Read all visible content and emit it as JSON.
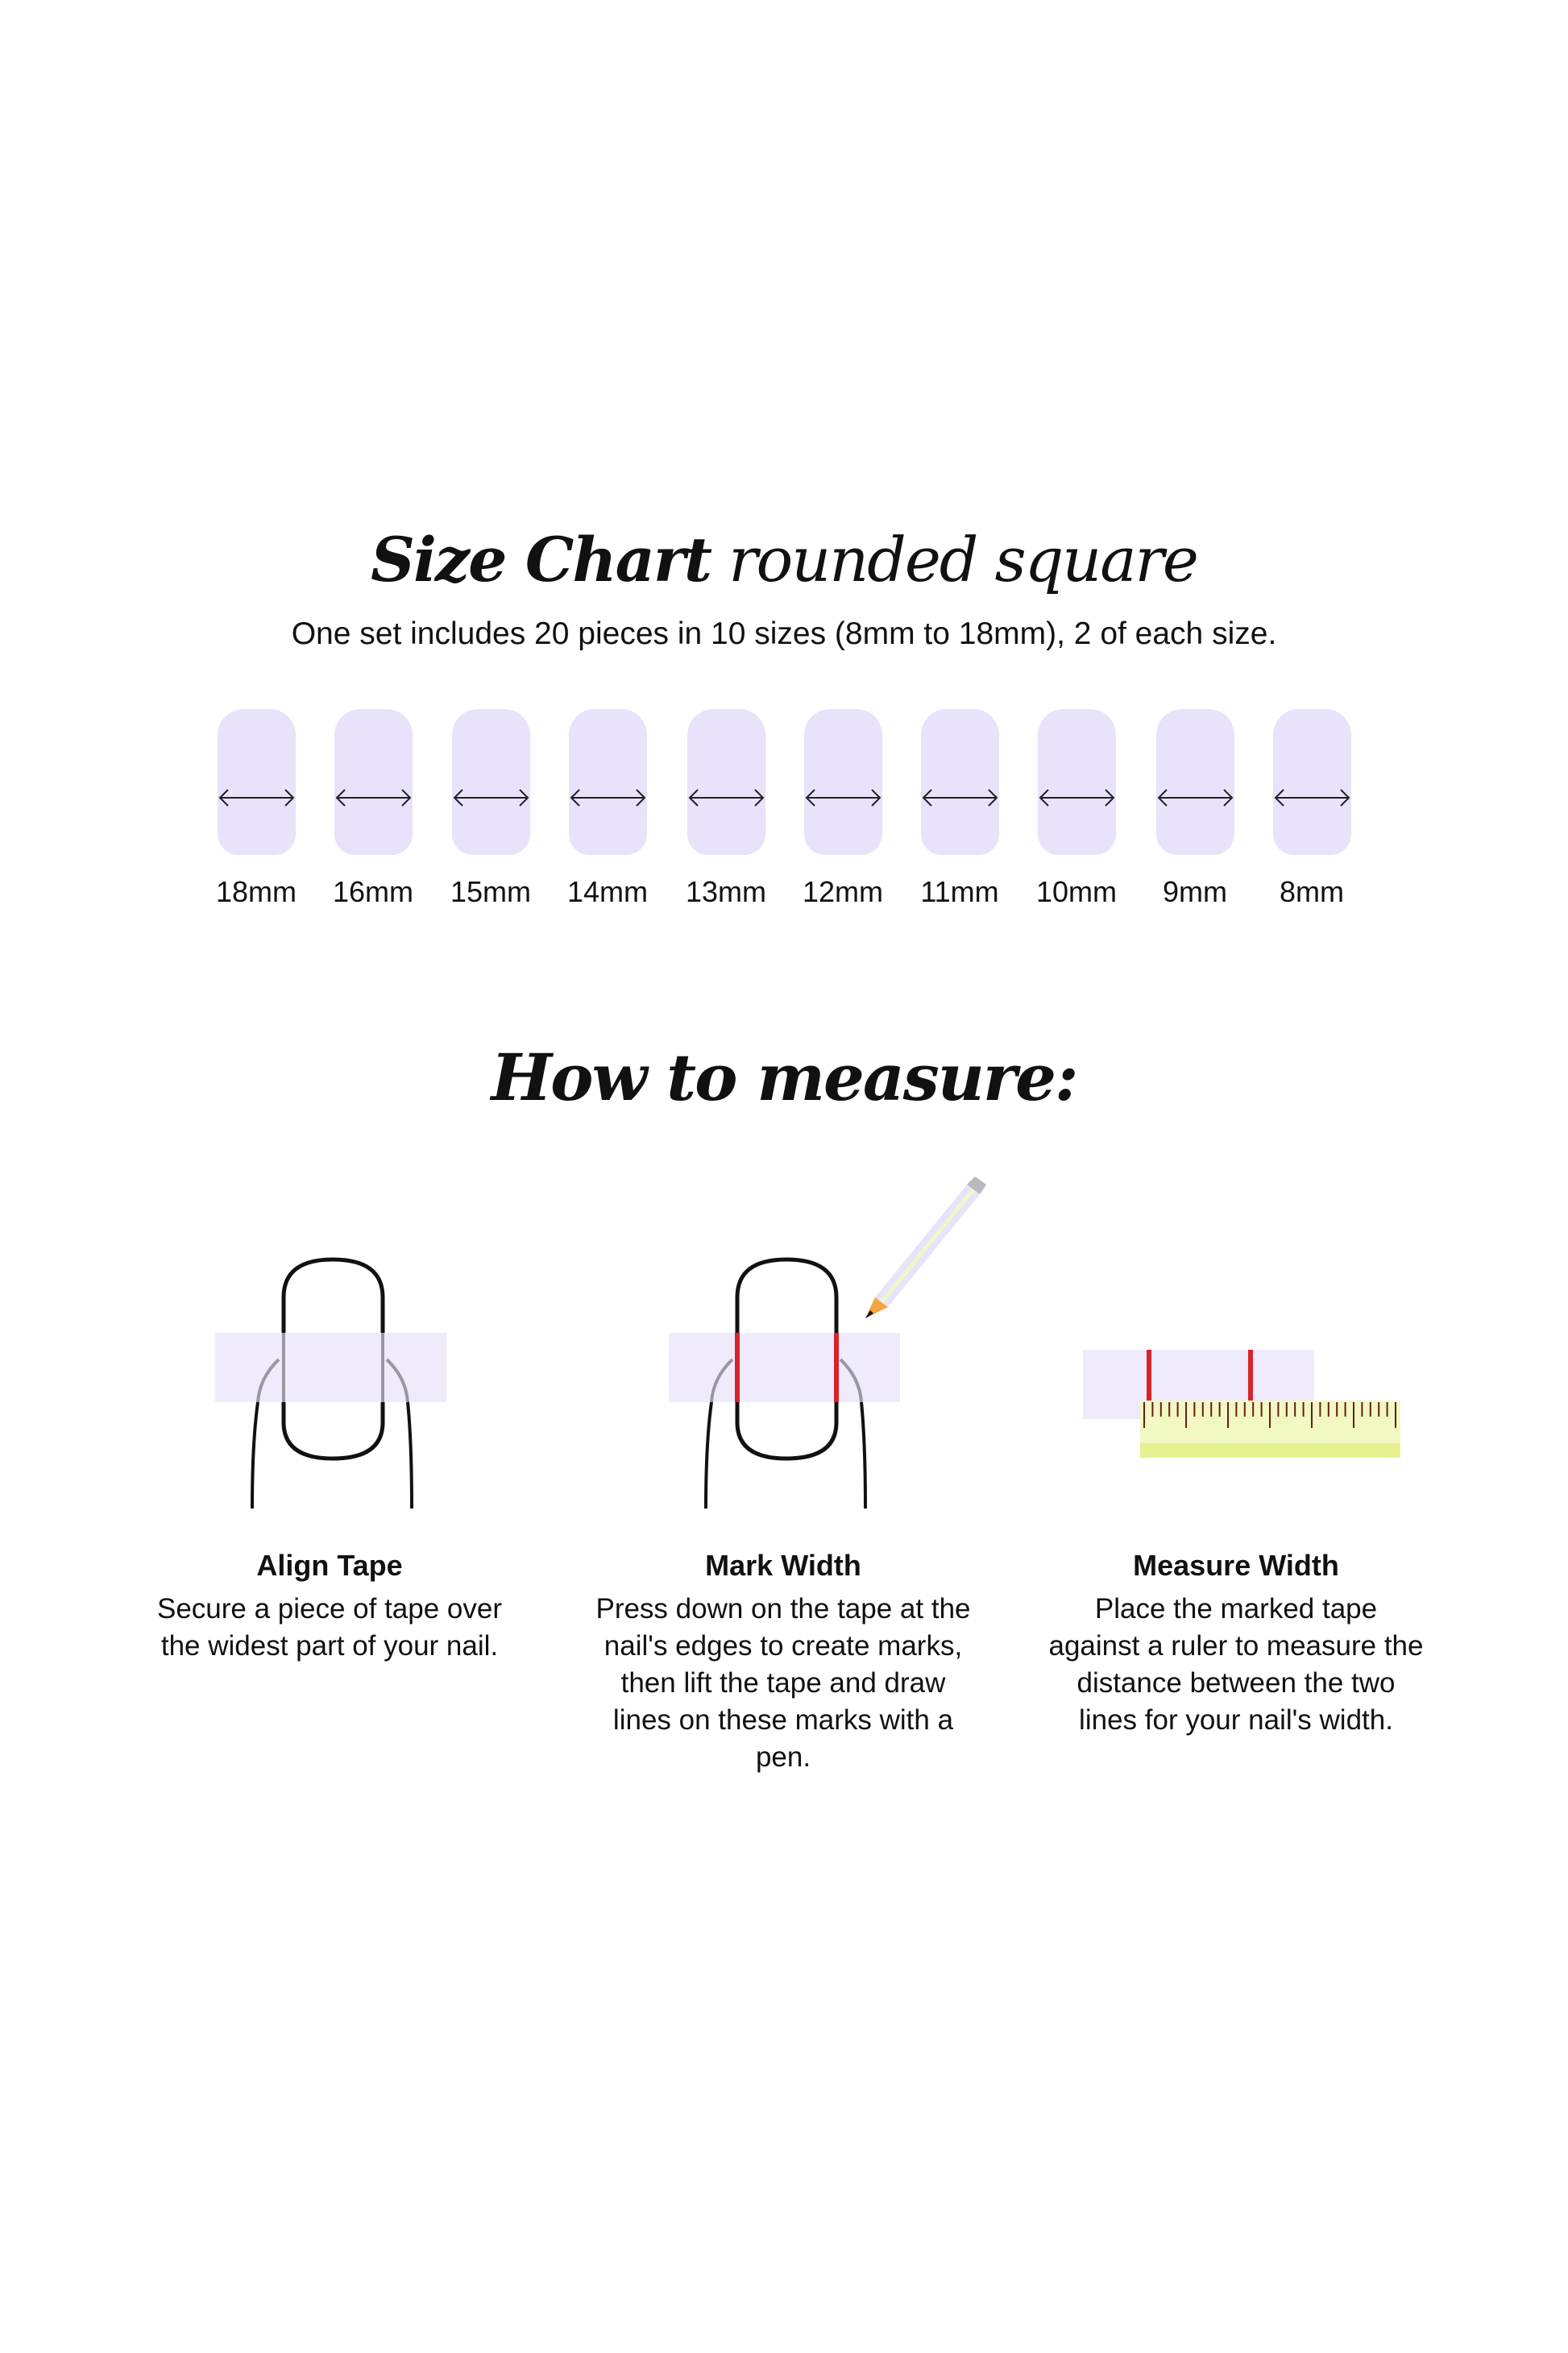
{
  "header": {
    "title_strong": "Size Chart",
    "title_light": "rounded square",
    "subtitle": "One set includes 20 pieces in 10 sizes (8mm to 18mm), 2 of each size."
  },
  "sizes": [
    "18mm",
    "16mm",
    "15mm",
    "14mm",
    "13mm",
    "12mm",
    "11mm",
    "10mm",
    "9mm",
    "8mm"
  ],
  "howto": {
    "title": "How to measure:",
    "steps": [
      {
        "title": "Align Tape",
        "text": "Secure a piece of tape over the widest part of your nail."
      },
      {
        "title": "Mark Width",
        "text": "Press down on the tape at the nail's edges to create marks, then lift the tape and draw lines on these marks with a pen."
      },
      {
        "title": "Measure Width",
        "text": "Place the marked tape against a ruler to measure the distance between the two lines for your nail's width."
      }
    ]
  },
  "colors": {
    "nail": "#e8e2fb",
    "tape": "#efebfc",
    "mark": "#d8232a",
    "ruler": "#f1f8c2",
    "text": "#111111"
  }
}
